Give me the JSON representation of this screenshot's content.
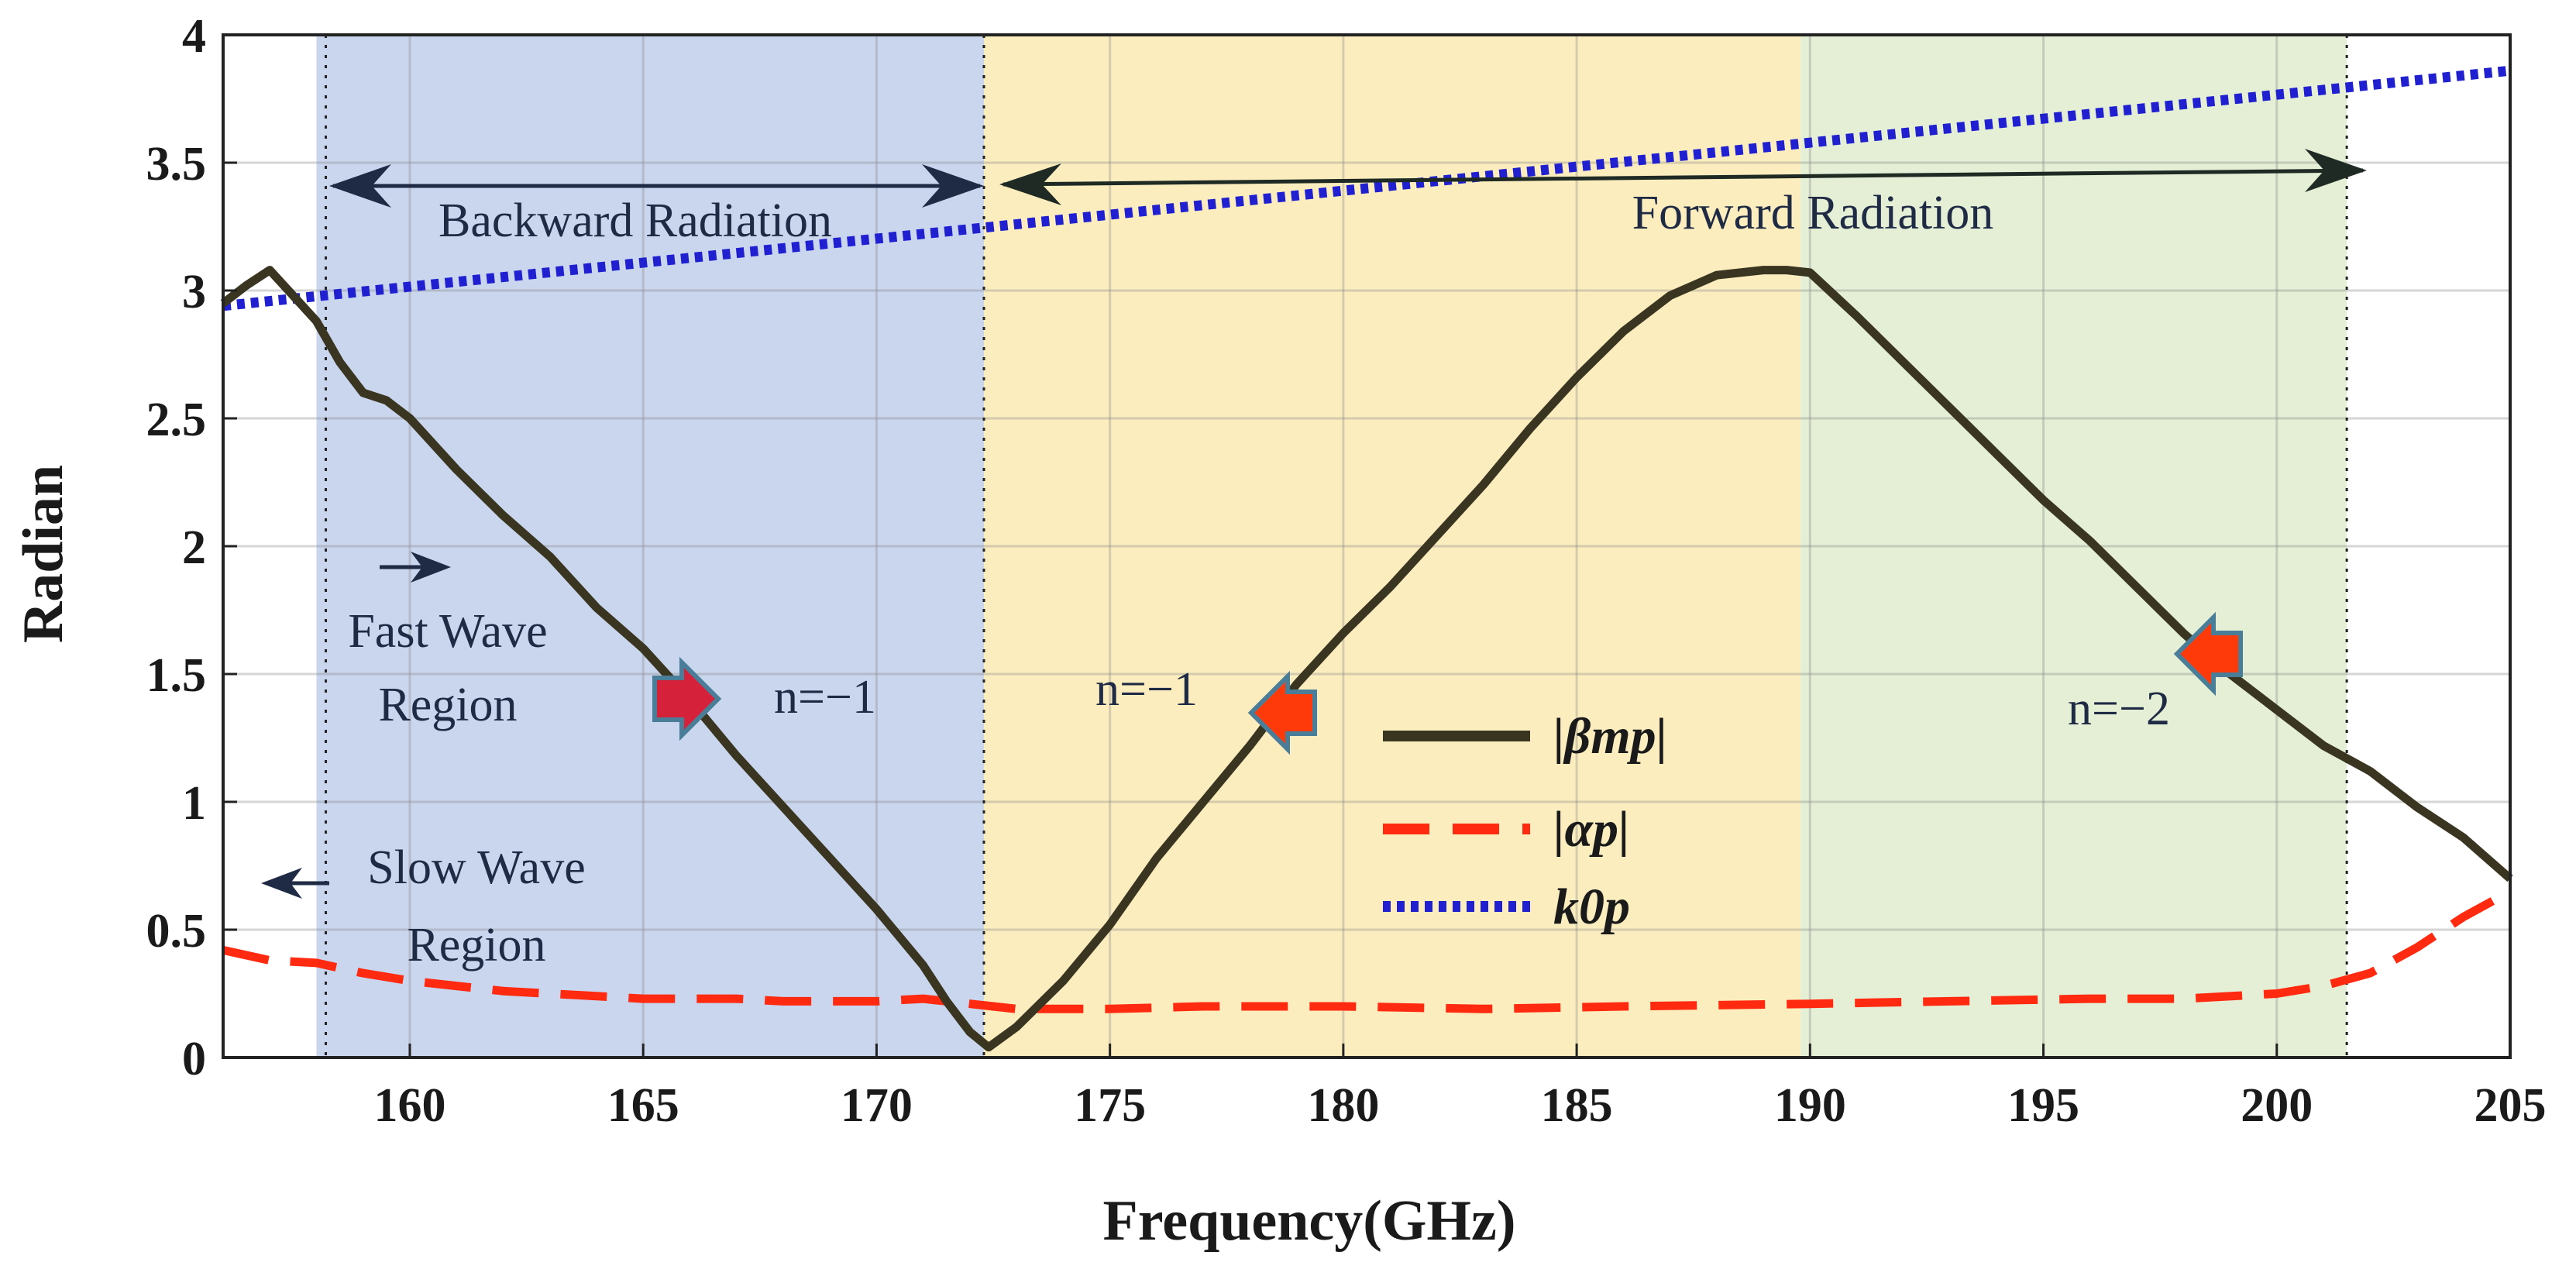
{
  "chart_data": {
    "type": "line",
    "xlabel": "Frequency(GHz)",
    "ylabel": "Radian",
    "xlim": [
      156,
      205
    ],
    "ylim": [
      0,
      4
    ],
    "xticks": [
      160,
      165,
      170,
      175,
      180,
      185,
      190,
      195,
      200,
      205
    ],
    "yticks": [
      0,
      0.5,
      1,
      1.5,
      2,
      2.5,
      3,
      3.5,
      4
    ],
    "xtick_labels": [
      "160",
      "165",
      "170",
      "175",
      "180",
      "185",
      "190",
      "195",
      "200",
      "205"
    ],
    "ytick_labels": [
      "0",
      "0.5",
      "1",
      "1.5",
      "2",
      "2.5",
      "3",
      "3.5",
      "4"
    ],
    "grid": true,
    "regions": [
      {
        "name": "backward-radiation-band",
        "x_start": 158,
        "x_end": 172.3,
        "color": "#c9d6ee"
      },
      {
        "name": "forward-radiation-n1-band",
        "x_start": 172.3,
        "x_end": 189.8,
        "color": "#fcedbf"
      },
      {
        "name": "forward-radiation-n2-band",
        "x_start": 189.8,
        "x_end": 201.5,
        "color": "#e4efd6"
      }
    ],
    "vlines": [
      158.2,
      172.3,
      201.5
    ],
    "series": [
      {
        "name": "|βmp|",
        "style": "solid",
        "x": [
          156,
          156.5,
          157,
          157.5,
          158,
          158.5,
          159,
          159.5,
          160,
          161,
          162,
          163,
          164,
          165,
          166,
          167,
          168,
          169,
          170,
          171,
          171.5,
          172,
          172.4,
          173,
          174,
          175,
          176,
          177,
          178,
          179,
          180,
          181,
          182,
          183,
          184,
          185,
          186,
          187,
          188,
          189,
          189.5,
          190,
          191,
          192,
          193,
          194,
          195,
          196,
          197,
          198,
          199,
          200,
          201,
          202,
          203,
          204,
          205
        ],
        "y": [
          2.95,
          3.02,
          3.08,
          2.98,
          2.88,
          2.72,
          2.6,
          2.57,
          2.5,
          2.3,
          2.12,
          1.96,
          1.76,
          1.6,
          1.4,
          1.18,
          0.98,
          0.78,
          0.58,
          0.36,
          0.22,
          0.1,
          0.04,
          0.12,
          0.3,
          0.52,
          0.78,
          1.0,
          1.22,
          1.46,
          1.66,
          1.84,
          2.04,
          2.24,
          2.46,
          2.66,
          2.84,
          2.98,
          3.06,
          3.08,
          3.08,
          3.07,
          2.9,
          2.72,
          2.54,
          2.36,
          2.18,
          2.02,
          1.84,
          1.66,
          1.5,
          1.36,
          1.22,
          1.12,
          0.98,
          0.86,
          0.7
        ],
        "color": "#3a3520"
      },
      {
        "name": "|αp|",
        "style": "dashed",
        "x": [
          156,
          157,
          158,
          159,
          160,
          161,
          162,
          163,
          164,
          165,
          166,
          167,
          168,
          169,
          170,
          171,
          172,
          173,
          175,
          177,
          180,
          183,
          186,
          190,
          193,
          196,
          198,
          200,
          201,
          202,
          203,
          204,
          205
        ],
        "y": [
          0.42,
          0.38,
          0.37,
          0.33,
          0.3,
          0.28,
          0.26,
          0.25,
          0.24,
          0.23,
          0.23,
          0.23,
          0.22,
          0.22,
          0.22,
          0.23,
          0.21,
          0.19,
          0.19,
          0.2,
          0.2,
          0.19,
          0.2,
          0.21,
          0.22,
          0.23,
          0.23,
          0.25,
          0.28,
          0.33,
          0.43,
          0.55,
          0.65
        ],
        "color": "#ff2a10"
      },
      {
        "name": "k0p",
        "style": "dotted",
        "x": [
          156,
          205
        ],
        "y": [
          2.94,
          3.86
        ],
        "color": "#2020d0"
      }
    ],
    "annotations": [
      {
        "text": "Backward Radiation",
        "x": 165,
        "y": 3.3
      },
      {
        "text": "Forward Radiation",
        "x": 187.5,
        "y": 3.33
      },
      {
        "text": "Fast Wave",
        "x": 161.8,
        "y": 1.71
      },
      {
        "text": "Region",
        "x": 161.8,
        "y": 1.39
      },
      {
        "text": "Slow Wave",
        "x": 162.5,
        "y": 0.71
      },
      {
        "text": "Region",
        "x": 162.5,
        "y": 0.38
      },
      {
        "text": "n=−1",
        "x": 168.5,
        "y": 1.37
      },
      {
        "text": "n=−1",
        "x": 176.2,
        "y": 1.37
      },
      {
        "text": "n=−2",
        "x": 196.6,
        "y": 1.3
      }
    ],
    "legend": {
      "position": "center",
      "entries": [
        "|βmp|",
        "|αp|",
        "k0p"
      ]
    }
  }
}
